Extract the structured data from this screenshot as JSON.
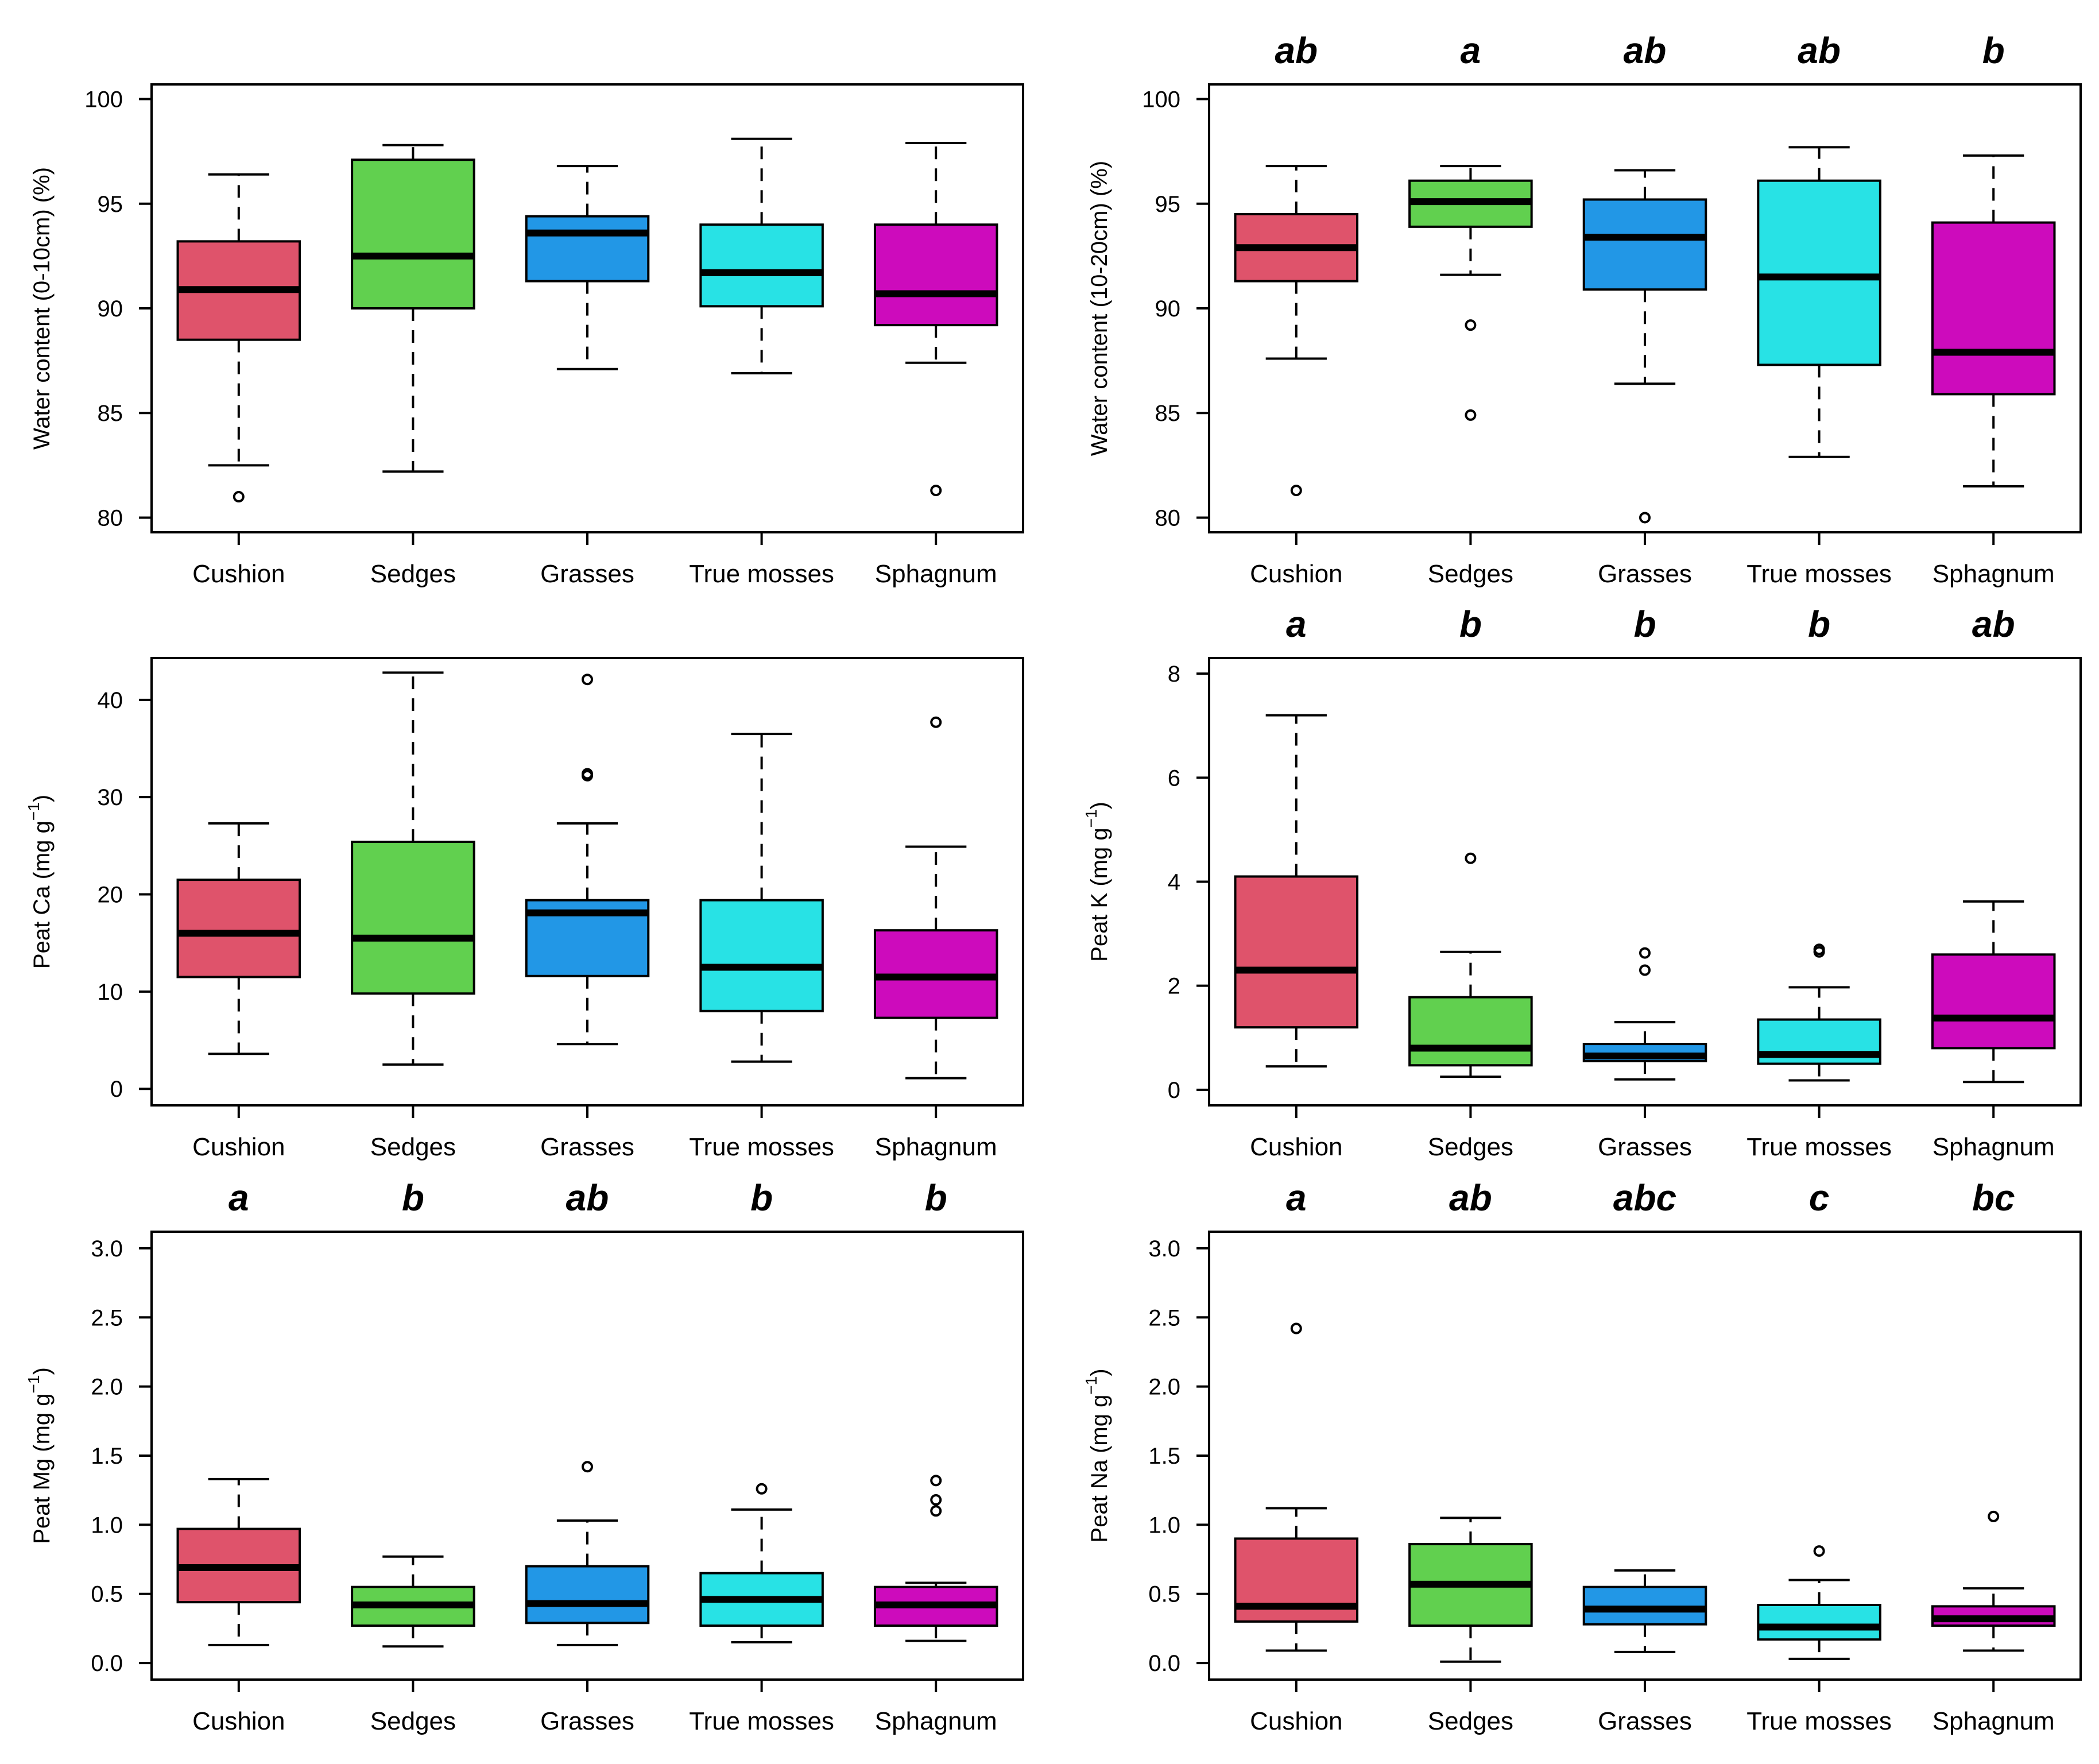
{
  "chart_data": [
    {
      "type": "boxplot",
      "panel": "top-left",
      "ylabel": "Water content (0-10cm) (%)",
      "ylim": [
        79.3,
        100.7
      ],
      "yticks": [
        80,
        85,
        90,
        95,
        100
      ],
      "categories": [
        "Cushion",
        "Sedges",
        "Grasses",
        "True mosses",
        "Sphagnum"
      ],
      "colors": [
        "#df536b",
        "#61d04f",
        "#2297e6",
        "#28e2e5",
        "#cd0bbc"
      ],
      "significance": [],
      "boxes": [
        {
          "whisker_low": 82.5,
          "q1": 88.5,
          "median": 90.9,
          "q3": 93.2,
          "whisker_high": 96.4,
          "outliers": [
            81.0
          ]
        },
        {
          "whisker_low": 82.2,
          "q1": 90.0,
          "median": 92.5,
          "q3": 97.1,
          "whisker_high": 97.8,
          "outliers": []
        },
        {
          "whisker_low": 87.1,
          "q1": 91.3,
          "median": 93.6,
          "q3": 94.4,
          "whisker_high": 96.8,
          "outliers": []
        },
        {
          "whisker_low": 86.9,
          "q1": 90.1,
          "median": 91.7,
          "q3": 94.0,
          "whisker_high": 98.1,
          "outliers": []
        },
        {
          "whisker_low": 87.4,
          "q1": 89.2,
          "median": 90.7,
          "q3": 94.0,
          "whisker_high": 97.9,
          "outliers": [
            81.3
          ]
        }
      ]
    },
    {
      "type": "boxplot",
      "panel": "top-right",
      "ylabel": "Water content (10-20cm) (%)",
      "ylim": [
        79.3,
        100.7
      ],
      "yticks": [
        80,
        85,
        90,
        95,
        100
      ],
      "categories": [
        "Cushion",
        "Sedges",
        "Grasses",
        "True mosses",
        "Sphagnum"
      ],
      "colors": [
        "#df536b",
        "#61d04f",
        "#2297e6",
        "#28e2e5",
        "#cd0bbc"
      ],
      "significance": [
        "ab",
        "a",
        "ab",
        "ab",
        "b"
      ],
      "boxes": [
        {
          "whisker_low": 87.6,
          "q1": 91.3,
          "median": 92.9,
          "q3": 94.5,
          "whisker_high": 96.8,
          "outliers": [
            81.3
          ]
        },
        {
          "whisker_low": 91.6,
          "q1": 93.9,
          "median": 95.1,
          "q3": 96.1,
          "whisker_high": 96.8,
          "outliers": [
            89.2,
            84.9
          ]
        },
        {
          "whisker_low": 86.4,
          "q1": 90.9,
          "median": 93.4,
          "q3": 95.2,
          "whisker_high": 96.6,
          "outliers": [
            80.0
          ]
        },
        {
          "whisker_low": 82.9,
          "q1": 87.3,
          "median": 91.5,
          "q3": 96.1,
          "whisker_high": 97.7,
          "outliers": []
        },
        {
          "whisker_low": 81.5,
          "q1": 85.9,
          "median": 87.9,
          "q3": 94.1,
          "whisker_high": 97.3,
          "outliers": []
        }
      ]
    },
    {
      "type": "boxplot",
      "panel": "middle-left",
      "ylabel_main": "Peat Ca (mg g",
      "ylabel_exp": "−1",
      "ylabel_close": ")",
      "ylim": [
        -1.7,
        44.3
      ],
      "yticks": [
        0,
        10,
        20,
        30,
        40
      ],
      "categories": [
        "Cushion",
        "Sedges",
        "Grasses",
        "True mosses",
        "Sphagnum"
      ],
      "colors": [
        "#df536b",
        "#61d04f",
        "#2297e6",
        "#28e2e5",
        "#cd0bbc"
      ],
      "significance": [],
      "boxes": [
        {
          "whisker_low": 3.6,
          "q1": 11.5,
          "median": 16.0,
          "q3": 21.5,
          "whisker_high": 27.3,
          "outliers": []
        },
        {
          "whisker_low": 2.5,
          "q1": 9.8,
          "median": 15.5,
          "q3": 25.4,
          "whisker_high": 42.8,
          "outliers": []
        },
        {
          "whisker_low": 4.6,
          "q1": 11.6,
          "median": 18.1,
          "q3": 19.4,
          "whisker_high": 27.3,
          "outliers": [
            42.1,
            32.4,
            32.2
          ]
        },
        {
          "whisker_low": 2.8,
          "q1": 8.0,
          "median": 12.5,
          "q3": 19.4,
          "whisker_high": 36.5,
          "outliers": []
        },
        {
          "whisker_low": 1.1,
          "q1": 7.3,
          "median": 11.5,
          "q3": 16.3,
          "whisker_high": 24.9,
          "outliers": [
            37.7
          ]
        }
      ]
    },
    {
      "type": "boxplot",
      "panel": "middle-right",
      "ylabel_main": "Peat K (mg g",
      "ylabel_exp": "−1",
      "ylabel_close": ")",
      "ylim": [
        -0.3,
        8.3
      ],
      "yticks": [
        0,
        2,
        4,
        6,
        8
      ],
      "categories": [
        "Cushion",
        "Sedges",
        "Grasses",
        "True mosses",
        "Sphagnum"
      ],
      "colors": [
        "#df536b",
        "#61d04f",
        "#2297e6",
        "#28e2e5",
        "#cd0bbc"
      ],
      "significance": [
        "a",
        "b",
        "b",
        "b",
        "ab"
      ],
      "boxes": [
        {
          "whisker_low": 0.45,
          "q1": 1.2,
          "median": 2.3,
          "q3": 4.1,
          "whisker_high": 7.2,
          "outliers": []
        },
        {
          "whisker_low": 0.25,
          "q1": 0.47,
          "median": 0.8,
          "q3": 1.78,
          "whisker_high": 2.65,
          "outliers": [
            4.45
          ]
        },
        {
          "whisker_low": 0.2,
          "q1": 0.55,
          "median": 0.65,
          "q3": 0.88,
          "whisker_high": 1.3,
          "outliers": [
            2.63,
            2.3
          ]
        },
        {
          "whisker_low": 0.18,
          "q1": 0.5,
          "median": 0.68,
          "q3": 1.35,
          "whisker_high": 1.97,
          "outliers": [
            2.7,
            2.65
          ]
        },
        {
          "whisker_low": 0.15,
          "q1": 0.8,
          "median": 1.38,
          "q3": 2.6,
          "whisker_high": 3.62,
          "outliers": []
        }
      ]
    },
    {
      "type": "boxplot",
      "panel": "bottom-left",
      "ylabel_main": "Peat Mg (mg g",
      "ylabel_exp": "−1",
      "ylabel_close": ")",
      "ylim": [
        -0.12,
        3.12
      ],
      "yticks": [
        "0.0",
        "0.5",
        "1.0",
        "1.5",
        "2.0",
        "2.5",
        "3.0"
      ],
      "categories": [
        "Cushion",
        "Sedges",
        "Grasses",
        "True mosses",
        "Sphagnum"
      ],
      "colors": [
        "#df536b",
        "#61d04f",
        "#2297e6",
        "#28e2e5",
        "#cd0bbc"
      ],
      "significance": [
        "a",
        "b",
        "ab",
        "b",
        "b"
      ],
      "boxes": [
        {
          "whisker_low": 0.13,
          "q1": 0.44,
          "median": 0.69,
          "q3": 0.97,
          "whisker_high": 1.33,
          "outliers": []
        },
        {
          "whisker_low": 0.12,
          "q1": 0.27,
          "median": 0.42,
          "q3": 0.55,
          "whisker_high": 0.77,
          "outliers": []
        },
        {
          "whisker_low": 0.13,
          "q1": 0.29,
          "median": 0.43,
          "q3": 0.7,
          "whisker_high": 1.03,
          "outliers": [
            1.42
          ]
        },
        {
          "whisker_low": 0.15,
          "q1": 0.27,
          "median": 0.46,
          "q3": 0.65,
          "whisker_high": 1.11,
          "outliers": [
            1.26
          ]
        },
        {
          "whisker_low": 0.16,
          "q1": 0.27,
          "median": 0.42,
          "q3": 0.55,
          "whisker_high": 0.58,
          "outliers": [
            1.32,
            1.18,
            1.1
          ]
        }
      ]
    },
    {
      "type": "boxplot",
      "panel": "bottom-right",
      "ylabel_main": "Peat Na (mg g",
      "ylabel_exp": "−1",
      "ylabel_close": ")",
      "ylim": [
        -0.12,
        3.12
      ],
      "yticks": [
        "0.0",
        "0.5",
        "1.0",
        "1.5",
        "2.0",
        "2.5",
        "3.0"
      ],
      "categories": [
        "Cushion",
        "Sedges",
        "Grasses",
        "True mosses",
        "Sphagnum"
      ],
      "colors": [
        "#df536b",
        "#61d04f",
        "#2297e6",
        "#28e2e5",
        "#cd0bbc"
      ],
      "significance": [
        "a",
        "ab",
        "abc",
        "c",
        "bc"
      ],
      "boxes": [
        {
          "whisker_low": 0.09,
          "q1": 0.3,
          "median": 0.41,
          "q3": 0.9,
          "whisker_high": 1.12,
          "outliers": [
            2.42
          ]
        },
        {
          "whisker_low": 0.01,
          "q1": 0.27,
          "median": 0.57,
          "q3": 0.86,
          "whisker_high": 1.05,
          "outliers": []
        },
        {
          "whisker_low": 0.08,
          "q1": 0.28,
          "median": 0.39,
          "q3": 0.55,
          "whisker_high": 0.67,
          "outliers": []
        },
        {
          "whisker_low": 0.03,
          "q1": 0.17,
          "median": 0.26,
          "q3": 0.42,
          "whisker_high": 0.6,
          "outliers": [
            0.81
          ]
        },
        {
          "whisker_low": 0.09,
          "q1": 0.27,
          "median": 0.32,
          "q3": 0.41,
          "whisker_high": 0.54,
          "outliers": [
            1.06
          ]
        }
      ]
    }
  ]
}
